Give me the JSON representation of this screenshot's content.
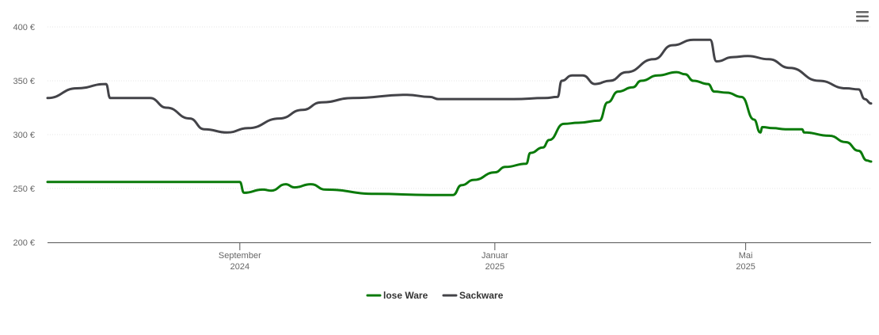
{
  "menu": {
    "icon": "hamburger-menu-icon"
  },
  "chart_data": {
    "type": "line",
    "y_tick_labels": [
      "400 €",
      "350 €",
      "300 €",
      "250 €",
      "200 €"
    ],
    "y_ticks": [
      400,
      350,
      300,
      250,
      200
    ],
    "ylim": [
      200,
      400
    ],
    "xlim": [
      "2024-06-01",
      "2025-06-30"
    ],
    "x_ticks": [
      {
        "date": "2024-09-01",
        "line1": "September",
        "line2": "2024"
      },
      {
        "date": "2025-01-01",
        "line1": "Januar",
        "line2": "2025"
      },
      {
        "date": "2025-05-01",
        "line1": "Mai",
        "line2": "2025"
      }
    ],
    "grid": true,
    "legend_position": "bottom",
    "series": [
      {
        "name": "lose Ware",
        "color": "#0a7a0a",
        "points": [
          [
            "2024-06-01",
            256
          ],
          [
            "2024-09-01",
            256
          ],
          [
            "2024-09-03",
            246
          ],
          [
            "2024-09-12",
            249
          ],
          [
            "2024-09-16",
            248
          ],
          [
            "2024-09-23",
            254
          ],
          [
            "2024-09-27",
            251
          ],
          [
            "2024-10-05",
            254
          ],
          [
            "2024-10-12",
            249
          ],
          [
            "2024-11-05",
            245
          ],
          [
            "2024-12-01",
            244
          ],
          [
            "2024-12-12",
            244
          ],
          [
            "2024-12-16",
            253
          ],
          [
            "2024-12-22",
            258
          ],
          [
            "2025-01-01",
            265
          ],
          [
            "2025-01-06",
            270
          ],
          [
            "2025-01-16",
            273
          ],
          [
            "2025-01-18",
            283
          ],
          [
            "2025-01-24",
            288
          ],
          [
            "2025-01-27",
            295
          ],
          [
            "2025-02-03",
            310
          ],
          [
            "2025-02-10",
            311
          ],
          [
            "2025-02-20",
            313
          ],
          [
            "2025-02-24",
            330
          ],
          [
            "2025-03-01",
            340
          ],
          [
            "2025-03-08",
            344
          ],
          [
            "2025-03-12",
            350
          ],
          [
            "2025-03-20",
            355
          ],
          [
            "2025-03-29",
            358
          ],
          [
            "2025-04-02",
            356
          ],
          [
            "2025-04-06",
            350
          ],
          [
            "2025-04-13",
            347
          ],
          [
            "2025-04-16",
            340
          ],
          [
            "2025-04-22",
            339
          ],
          [
            "2025-04-29",
            335
          ],
          [
            "2025-05-05",
            314
          ],
          [
            "2025-05-08",
            302
          ],
          [
            "2025-05-09",
            307
          ],
          [
            "2025-05-14",
            306
          ],
          [
            "2025-05-20",
            305
          ],
          [
            "2025-05-28",
            305
          ],
          [
            "2025-05-29",
            302
          ],
          [
            "2025-06-10",
            299
          ],
          [
            "2025-06-18",
            293
          ],
          [
            "2025-06-24",
            285
          ],
          [
            "2025-06-28",
            276
          ],
          [
            "2025-06-30",
            275
          ]
        ]
      },
      {
        "name": "Sackware",
        "color": "#434348",
        "points": [
          [
            "2024-06-01",
            334
          ],
          [
            "2024-06-15",
            343
          ],
          [
            "2024-06-29",
            347
          ],
          [
            "2024-07-01",
            334
          ],
          [
            "2024-07-20",
            334
          ],
          [
            "2024-07-28",
            325
          ],
          [
            "2024-08-08",
            315
          ],
          [
            "2024-08-15",
            305
          ],
          [
            "2024-08-26",
            302
          ],
          [
            "2024-09-05",
            306
          ],
          [
            "2024-09-20",
            315
          ],
          [
            "2024-10-01",
            323
          ],
          [
            "2024-10-10",
            330
          ],
          [
            "2024-10-25",
            334
          ],
          [
            "2024-11-20",
            337
          ],
          [
            "2024-12-01",
            335
          ],
          [
            "2024-12-05",
            333
          ],
          [
            "2025-01-10",
            333
          ],
          [
            "2025-01-25",
            334
          ],
          [
            "2025-01-31",
            335
          ],
          [
            "2025-02-02",
            350
          ],
          [
            "2025-02-07",
            355
          ],
          [
            "2025-02-12",
            355
          ],
          [
            "2025-02-18",
            347
          ],
          [
            "2025-02-25",
            350
          ],
          [
            "2025-03-05",
            358
          ],
          [
            "2025-03-18",
            370
          ],
          [
            "2025-03-27",
            383
          ],
          [
            "2025-04-06",
            388
          ],
          [
            "2025-04-14",
            388
          ],
          [
            "2025-04-17",
            368
          ],
          [
            "2025-04-25",
            372
          ],
          [
            "2025-05-02",
            373
          ],
          [
            "2025-05-12",
            370
          ],
          [
            "2025-05-22",
            362
          ],
          [
            "2025-06-05",
            350
          ],
          [
            "2025-06-18",
            343
          ],
          [
            "2025-06-24",
            342
          ],
          [
            "2025-06-27",
            333
          ],
          [
            "2025-06-30",
            329
          ]
        ]
      }
    ]
  }
}
